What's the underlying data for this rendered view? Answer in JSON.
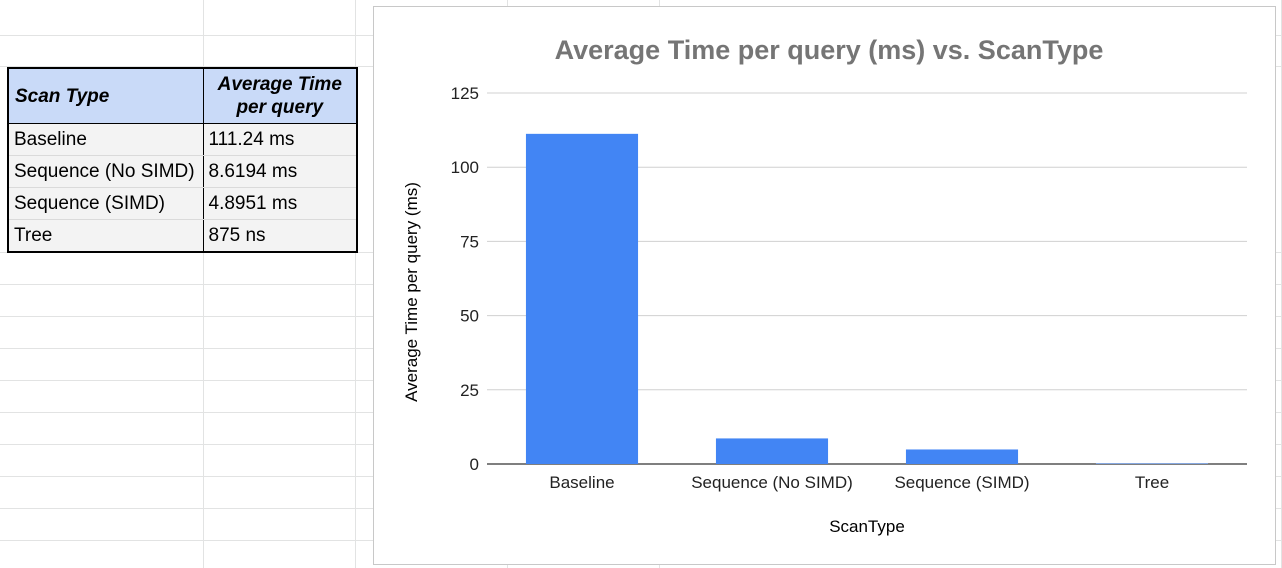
{
  "table": {
    "headers": [
      "Scan Type",
      "Average Time per query"
    ],
    "rows": [
      [
        "Baseline",
        "111.24 ms"
      ],
      [
        "Sequence (No SIMD)",
        "8.6194 ms"
      ],
      [
        "Sequence (SIMD)",
        "4.8951 ms"
      ],
      [
        "Tree",
        "875 ns"
      ]
    ]
  },
  "chart_data": {
    "type": "bar",
    "title": "Average Time per query (ms) vs. ScanType",
    "xlabel": "ScanType",
    "ylabel": "Average Time per query (ms)",
    "categories": [
      "Baseline",
      "Sequence (No SIMD)",
      "Sequence (SIMD)",
      "Tree"
    ],
    "values": [
      111.24,
      8.6194,
      4.8951,
      0.000875
    ],
    "ylim": [
      0,
      125
    ],
    "yticks": [
      0,
      25,
      50,
      75,
      100,
      125
    ],
    "grid": true,
    "legend": "none",
    "bar_color": "#4285f4"
  }
}
